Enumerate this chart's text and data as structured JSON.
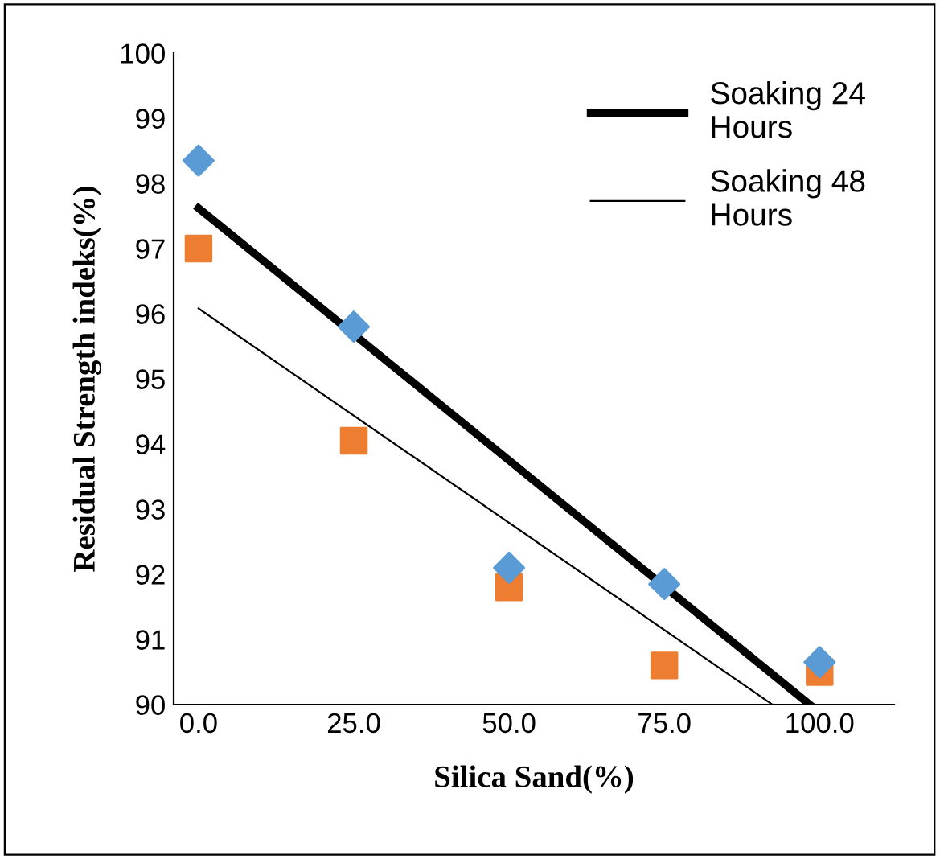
{
  "chart_data": {
    "type": "scatter",
    "xlabel": "Silica Sand(%)",
    "ylabel": "Residual Strength indeks(%)",
    "x": [
      0,
      25,
      50,
      75,
      100
    ],
    "series": [
      {
        "color": "#5b9bd5",
        "marker": "diamond",
        "values": [
          98.35,
          95.8,
          92.1,
          91.85,
          90.65
        ]
      },
      {
        "color": "#ed7d31",
        "marker": "square",
        "values": [
          97.0,
          94.05,
          91.8,
          90.6,
          90.5
        ]
      },
      {
        "type": "line",
        "name": "Soaking 24 Hours",
        "color": "#000000",
        "x": [
          0,
          98.4
        ],
        "values": [
          97.62,
          90
        ]
      },
      {
        "type": "line",
        "name": "Soaking 48 Hours",
        "color": "#000000",
        "x": [
          0,
          92.4
        ],
        "values": [
          96.08,
          90
        ]
      }
    ],
    "xlim": [
      -4,
      112
    ],
    "xticks": [
      {
        "value": 0,
        "label": "0.0"
      },
      {
        "value": 25,
        "label": "25.0"
      },
      {
        "value": 50,
        "label": "50.0"
      },
      {
        "value": 75,
        "label": "75.0"
      },
      {
        "value": 100,
        "label": "100.0"
      }
    ],
    "ylim": [
      90,
      100
    ],
    "yticks": [
      90,
      91,
      92,
      93,
      94,
      95,
      96,
      97,
      98,
      99,
      100
    ],
    "legend": "top right",
    "grid": false
  }
}
